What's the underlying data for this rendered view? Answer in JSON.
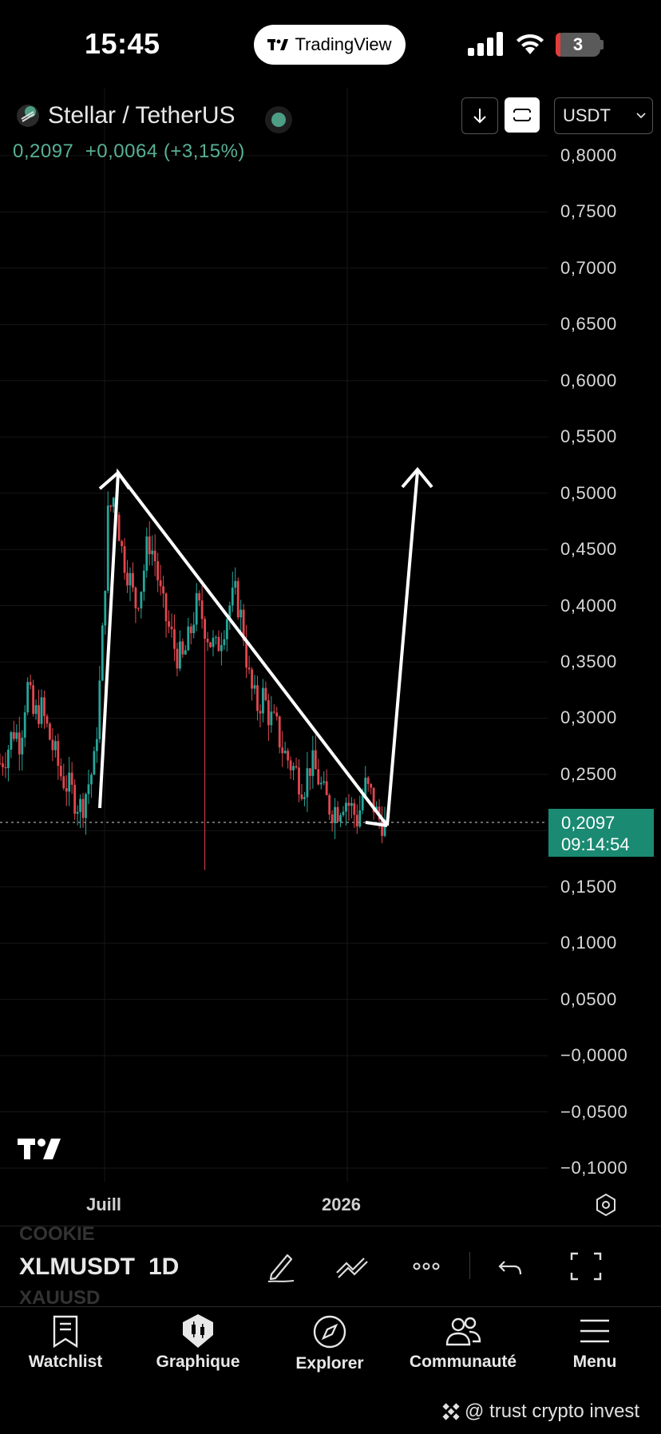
{
  "status_bar": {
    "time": "15:45",
    "app_pill": "TradingView",
    "battery": "3"
  },
  "chart_header": {
    "title": "Stellar / TetherUS",
    "price": "0,2097",
    "change": "+0,0064",
    "change_pct": "(+3,15%)",
    "currency": "USDT"
  },
  "price_axis": {
    "labels": [
      "0,8000",
      "0,7500",
      "0,7000",
      "0,6500",
      "0,6000",
      "0,5500",
      "0,5000",
      "0,4500",
      "0,4000",
      "0,3500",
      "0,3000",
      "0,2500",
      "0,1500",
      "0,1000",
      "0,0500",
      "−0,0000",
      "−0,0500",
      "−0,1000"
    ],
    "current_price": "0,2097",
    "countdown": "09:14:54"
  },
  "time_axis": {
    "labels": [
      "Juill",
      "2026"
    ]
  },
  "chart_data": {
    "type": "candlestick",
    "symbol": "XLMUSDT",
    "interval": "1D",
    "y_range": [
      -0.1,
      0.8
    ],
    "x_labels": [
      "Juill",
      "2026"
    ],
    "approx_close_path": [
      0.26,
      0.27,
      0.29,
      0.28,
      0.33,
      0.3,
      0.31,
      0.29,
      0.27,
      0.25,
      0.24,
      0.23,
      0.22,
      0.24,
      0.26,
      0.35,
      0.48,
      0.5,
      0.45,
      0.43,
      0.4,
      0.42,
      0.46,
      0.44,
      0.4,
      0.38,
      0.36,
      0.35,
      0.37,
      0.4,
      0.39,
      0.37,
      0.36,
      0.38,
      0.4,
      0.41,
      0.38,
      0.33,
      0.31,
      0.32,
      0.3,
      0.29,
      0.27,
      0.26,
      0.25,
      0.24,
      0.26,
      0.25,
      0.23,
      0.22,
      0.22,
      0.23,
      0.22,
      0.21,
      0.24,
      0.23,
      0.21,
      0.2097
    ],
    "current_price": 0.2097,
    "drawings": [
      {
        "type": "line",
        "from": [
          0.25,
          0.22
        ],
        "to": [
          0.245,
          0.52
        ]
      },
      {
        "type": "line",
        "from": [
          0.245,
          0.52
        ],
        "to": [
          0.945,
          0.205
        ]
      },
      {
        "type": "arrow",
        "from": [
          0.945,
          0.205
        ],
        "to": [
          1.0,
          0.52
        ]
      }
    ]
  },
  "toolbar": {
    "symbol_prev": "COOKIE",
    "symbol_current": "XLMUSDT",
    "symbol_next": "XAUUSD",
    "interval": "1D"
  },
  "bottom_nav": {
    "items": [
      {
        "label": "Watchlist",
        "icon": "bookmark-icon"
      },
      {
        "label": "Graphique",
        "icon": "chart-icon"
      },
      {
        "label": "Explorer",
        "icon": "compass-icon"
      },
      {
        "label": "Communauté",
        "icon": "community-icon"
      },
      {
        "label": "Menu",
        "icon": "menu-icon"
      }
    ]
  },
  "watermark": "@ trust crypto invest",
  "colors": {
    "up": "#26a69a",
    "down": "#e0474f",
    "price_badge": "#1a8a72",
    "change_text": "#58b095"
  }
}
